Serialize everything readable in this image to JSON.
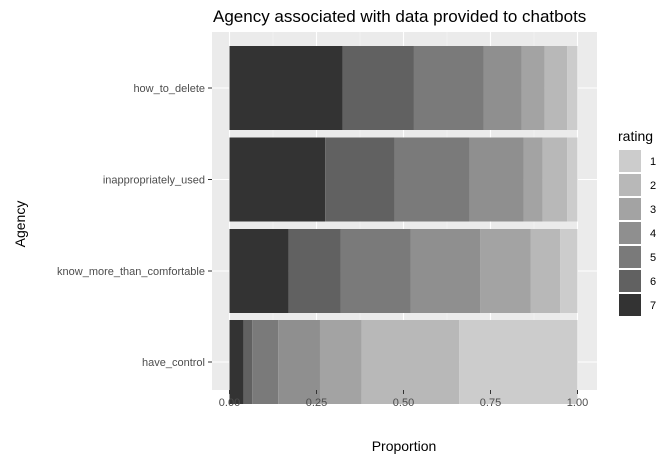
{
  "chart_data": {
    "type": "bar",
    "orientation": "horizontal",
    "stacked": true,
    "title": "Agency associated with data provided to chatbots",
    "xlabel": "Proportion",
    "ylabel": "Agency",
    "xlim": [
      0,
      1
    ],
    "x_ticks": [
      "0.00",
      "0.25",
      "0.50",
      "0.75",
      "1.00"
    ],
    "x_tick_values": [
      0,
      0.25,
      0.5,
      0.75,
      1
    ],
    "grid": true,
    "legend_position": "right",
    "legend_title": "rating",
    "categories": [
      "how_to_delete",
      "inappropriately_used",
      "know_more_than_comfortable",
      "have_control"
    ],
    "series": [
      {
        "name": "7",
        "color": "#333333",
        "values": [
          0.325,
          0.275,
          0.17,
          0.04
        ]
      },
      {
        "name": "6",
        "color": "#616161",
        "values": [
          0.205,
          0.2,
          0.15,
          0.025
        ]
      },
      {
        "name": "5",
        "color": "#7a7a7a",
        "values": [
          0.2,
          0.215,
          0.2,
          0.075
        ]
      },
      {
        "name": "4",
        "color": "#8f8f8f",
        "values": [
          0.11,
          0.155,
          0.2,
          0.12
        ]
      },
      {
        "name": "3",
        "color": "#a3a3a3",
        "values": [
          0.065,
          0.055,
          0.145,
          0.12
        ]
      },
      {
        "name": "2",
        "color": "#b8b8b8",
        "values": [
          0.065,
          0.07,
          0.085,
          0.28
        ]
      },
      {
        "name": "1",
        "color": "#cccccc",
        "values": [
          0.03,
          0.03,
          0.05,
          0.34
        ]
      }
    ],
    "legend_order": [
      "1",
      "2",
      "3",
      "4",
      "5",
      "6",
      "7"
    ]
  }
}
